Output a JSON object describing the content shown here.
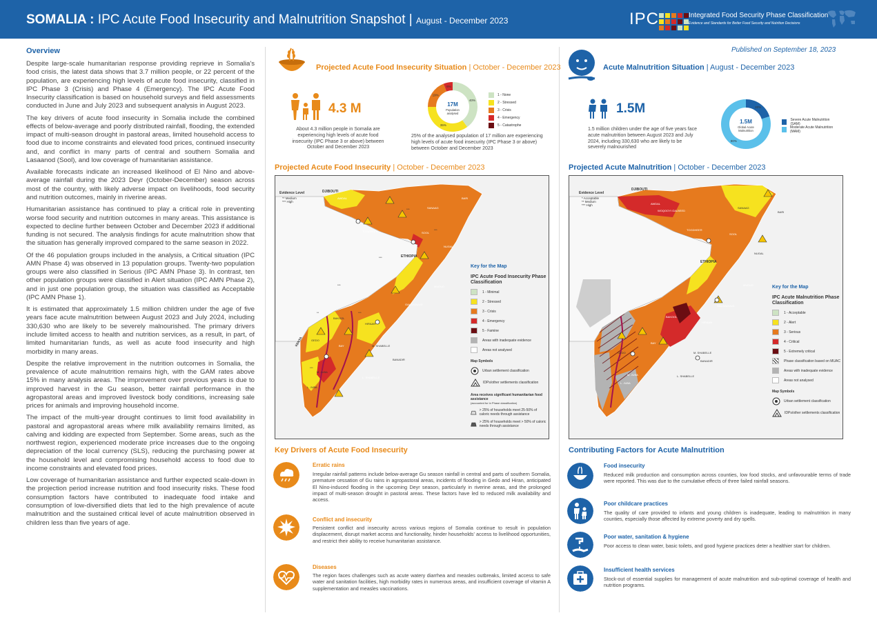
{
  "header": {
    "country": "SOMALIA :",
    "title": "IPC Acute Food Insecurity and Malnutrition Snapshot |",
    "period": "August - December 2023",
    "ipc_short": "IPC",
    "ipc_full": "Integrated Food Security Phase Classification",
    "ipc_tagline": "Evidence and Standards for Better Food Security and Nutrition Decisions"
  },
  "published": "Published on September 18, 2023",
  "overview": {
    "heading": "Overview",
    "paragraphs": [
      "Despite large-scale humanitarian response providing reprieve in Somalia's food crisis, the latest data shows that 3.7 million people, or 22 percent of the population, are experiencing high levels of acute food insecurity, classified in IPC Phase 3 (Crisis) and Phase 4 (Emergency). The IPC Acute Food Insecurity classification is based on household surveys and field assessments conducted in June and July 2023 and subsequent analysis in August 2023.",
      "The key drivers of acute food insecurity in Somalia include the combined effects of below-average and poorly distributed rainfall, flooding, the extended impact of multi-season drought in pastoral areas, limited household access to food due to income constraints and elevated food prices, continued insecurity and, and conflict in many parts of central and southern Somalia and Lasaanod (Sool), and low coverage of humanitarian assistance.",
      "Available forecasts indicate an increased likelihood of El Nino and above-average rainfall during the 2023 Deyr (October-December) season across most of the country, with likely adverse impact on livelihoods, food security and nutrition outcomes, mainly in riverine areas.",
      "Humanitarian assistance has continued to play a critical role in preventing worse food security and nutrition outcomes in many areas. This assistance is expected to decline further between October and December 2023 if additional funding is not secured. The analysis findings for acute malnutrition show that the situation has generally improved compared to the same season in 2022.",
      "Of the 46 population groups included in the analysis, a Critical situation (IPC AMN Phase 4) was observed in 13 population groups. Twenty-two population groups were also classified in Serious (IPC AMN Phase 3). In contrast, ten other population groups were classified in Alert situation (IPC AMN Phase 2), and in just one population group, the situation was classified as Acceptable (IPC AMN Phase 1).",
      "It is estimated that approximately 1.5 million children under the age of five years face acute malnutrition between August 2023 and July 2024, including 330,630 who are likely to be severely malnourished. The primary drivers include limited access to health and nutrition services, as a result, in part, of limited humanitarian funds, as well as acute food insecurity and high morbidity in many areas.",
      "Despite the relative improvement in the nutrition outcomes in Somalia, the prevalence of acute malnutrition remains high, with the GAM rates above 15% in many analysis areas.  The improvement over previous years is due to improved harvest in the Gu season, better rainfall performance in the agropastoral areas and improved livestock body conditions, increasing sale prices for animals and improving household income.",
      "The impact of the multi-year drought continues to limit food availability in pastoral and agropastoral areas where milk availability remains limited, as calving and kidding are expected from September. Some areas, such as the northwest region, experienced moderate price increases due to the ongoing depreciation of the local currency (SLS), reducing the purchasing power at the household level and compromising household access to food due to income constraints and elevated food prices.",
      "Low coverage of humanitarian assistance and further expected scale-down in the projection period increase nutrition and food insecurity risks. These food consumption factors have contributed to inadequate food intake and consumption of low-diversified diets that led to the high prevalence of acute malnutrition and the sustained critical level of acute malnutrition observed in children less than five years of age."
    ]
  },
  "afi_situation": {
    "heading": "Projected Acute Food Insecurity Situation",
    "period": "October - December 2023",
    "number": "4.3 M",
    "number_text": "About 4.3 million people in Somalia are experiencing high levels of acute food insecurity (IPC Phase 3 or above) between October and December 2023",
    "donut_center": "17M",
    "donut_sub": "Population analysed",
    "donut_text": "25% of the analysed population of 17 million are experiencing high levels of acute food insecurity (IPC Phase 3 or above) between October and December 2023",
    "donut": [
      {
        "label": "1 - None",
        "value": 40,
        "color": "#cde3c3",
        "pct": "40%"
      },
      {
        "label": "2 - Stressed",
        "value": 35,
        "color": "#f6e21f",
        "pct": "35%"
      },
      {
        "label": "3 - Crisis",
        "value": 19,
        "color": "#e67a1e",
        "pct": "19%"
      },
      {
        "label": "4 - Emergency",
        "value": 6,
        "color": "#d42a2a",
        "pct": "6%"
      },
      {
        "label": "5 - Catastrophe",
        "value": 0,
        "color": "#6b0d12",
        "pct": ""
      }
    ]
  },
  "amn_situation": {
    "heading": "Acute Malnutrition Situation",
    "period": "August - December 2023",
    "number": "1.5M",
    "number_text": "1.5 million children under the age of five years face acute malnutrition between August 2023 and July 2024, including 330,630 who are likely to be severely malnourished",
    "donut_center": "1.5M",
    "donut_sub": "Global Acute Malnutrition",
    "donut": [
      {
        "label": "Severe Acute Malnutrition (SAM)",
        "value": 20,
        "color": "#1e63a8",
        "pct": "20%"
      },
      {
        "label": "Moderate Acute Malnutrition (MAM)",
        "value": 80,
        "color": "#5bc0ea",
        "pct": "80%"
      }
    ]
  },
  "afi_map": {
    "heading": "Projected Acute Food Insecurity",
    "period": "October - December 2023",
    "evidence_title": "Evidence Level",
    "evidence": [
      "Medium",
      "High"
    ],
    "key_title": "Key for the Map",
    "class_title": "IPC Acute Food Insecurity Phase Classification",
    "classes": [
      {
        "label": "1 - Minimal",
        "color": "#cde3c3"
      },
      {
        "label": "2 - Stressed",
        "color": "#f6e21f"
      },
      {
        "label": "3 - Crisis",
        "color": "#e67a1e"
      },
      {
        "label": "4 - Emergency",
        "color": "#d42a2a"
      },
      {
        "label": "5 - Famine",
        "color": "#6b0d12"
      },
      {
        "label": "Areas with inadequate evidence",
        "color": "#b3b3b3"
      },
      {
        "label": "Areas not analysed",
        "color": "#ffffff"
      }
    ],
    "symbols_title": "Map Symbols",
    "symbols": [
      "Urban settlement classification",
      "IDPs/other settlements classification"
    ],
    "assist_title": "Area receives significant humanitarian food assistance",
    "assist_note": "(accounted for in Phase classification)",
    "assist": [
      "> 25% of households meet 25-50% of caloric needs through assistance",
      "> 25% of households meet > 50% of caloric needs through assistance"
    ],
    "labels": {
      "djibouti": "DJIBOUTI",
      "ethiopia": "ETHIOPIA",
      "kenya": "KENYA",
      "bari": "BARI",
      "sool": "SOOL",
      "togdheer": "TOGDHEER",
      "nugal": "NUGAL",
      "mudug": "MUDUG",
      "galgaduud": "GALGADUUD",
      "bakool": "BAKOOL",
      "hiraan": "HIRAAN",
      "gedo": "GEDO",
      "mshabelle": "M. SHABELLE",
      "banadir": "BANADIR",
      "lshabelle": "L. SHABELLE",
      "mjuba": "M. JUBA",
      "ljuba": "L. JUBA",
      "sanaag": "SANAAG",
      "awdal": "AWDAL",
      "bay": "BAY"
    }
  },
  "amn_map": {
    "heading": "Projected Acute Malnutrition",
    "period": "October - December 2023",
    "evidence_title": "Evidence Level",
    "evidence": [
      "Acceptable",
      "Medium",
      "High"
    ],
    "key_title": "Key for the Map",
    "class_title": "IPC Acute Malnutrition Phase Classification",
    "classes": [
      {
        "label": "1 - Acceptable",
        "color": "#cde3c3"
      },
      {
        "label": "2 - Alert",
        "color": "#f6e21f"
      },
      {
        "label": "3 - Serious",
        "color": "#e67a1e"
      },
      {
        "label": "4 - Critical",
        "color": "#d42a2a"
      },
      {
        "label": "5 - Extremely critical",
        "color": "#6b0d12"
      },
      {
        "label": "Phase classification based on MUAC",
        "color": "#777777"
      },
      {
        "label": "Areas with inadequate evidence",
        "color": "#b3b3b3"
      },
      {
        "label": "Areas not analysed",
        "color": "#ffffff"
      }
    ],
    "symbols_title": "Map Symbols",
    "symbols": [
      "Urban settlement classification",
      "IDPs/other settlements classification"
    ],
    "labels": {
      "djibouti": "DJIBOUTI",
      "ethiopia": "ETHIOPIA",
      "bari": "BARI",
      "sanaag": "SANAAG",
      "awdal": "AWDAL",
      "woqooyi": "WOQOOYI GALBEED",
      "togdheer": "TOGDHEER",
      "sool": "SOOL",
      "nugal": "NUGAL",
      "mudug": "MUDUG",
      "galgaduud": "GALGADUUD",
      "bakool": "BAKOOL",
      "hiraan": "HIRAAN",
      "gedo": "GEDO",
      "mshabelle": "M. SHABELLE",
      "banadir": "BANADIR",
      "lshabelle": "L. SHABELLE",
      "mjuba": "M. JUBA",
      "ljuba": "L. JUBA",
      "bay": "BAY"
    }
  },
  "drivers": {
    "heading": "Key Drivers of Acute Food Insecurity",
    "items": [
      {
        "title": "Erratic rains",
        "text": "Irregular rainfall patterns include below-average Gu season rainfall in central and parts of southern Somalia, premature cessation of Gu rains in agropastoral areas, incidents of flooding in Gedo and Hiran, anticipated El Nino-induced flooding in the upcoming Deyr season, particularly in riverine areas, and the prolonged impact of multi-season drought in pastoral areas. These factors have led to reduced milk availability and access."
      },
      {
        "title": "Conflict and insecurity",
        "text": "Persistent conflict and insecurity across various regions of Somalia continue to result in population displacement, disrupt market access and functionality, hinder households' access to livelihood opportunities, and restrict their ability to receive humanitarian assistance."
      },
      {
        "title": "Diseases",
        "text": "The region faces challenges such as acute watery diarrhea and measles outbreaks, limited access to safe water and sanitation facilities, high morbidity rates in numerous areas, and insufficient coverage of vitamin A supplementation and measles vaccinations."
      }
    ]
  },
  "factors": {
    "heading": "Contributing Factors for Acute Malnutrition",
    "items": [
      {
        "title": "Food insecurity",
        "text": "Reduced milk production and consumption across counties, low food stocks, and unfavourable terms of trade were reported. This was due to the cumulative effects of three failed rainfall seasons."
      },
      {
        "title": "Poor childcare practices",
        "text": "The quality of care provided to infants and young children is inadequate, leading to malnutrition in many counties, especially those affected by extreme poverty and dry spells."
      },
      {
        "title": "Poor water, sanitation & hygiene",
        "text": "Poor access to clean water, basic toilets, and good hygiene practices deter a healthier start for children."
      },
      {
        "title": "Insufficient health services",
        "text": "Stock-out of essential supplies for management of acute malnutrition and sub-optimal coverage of health and nutrition programs."
      }
    ]
  }
}
